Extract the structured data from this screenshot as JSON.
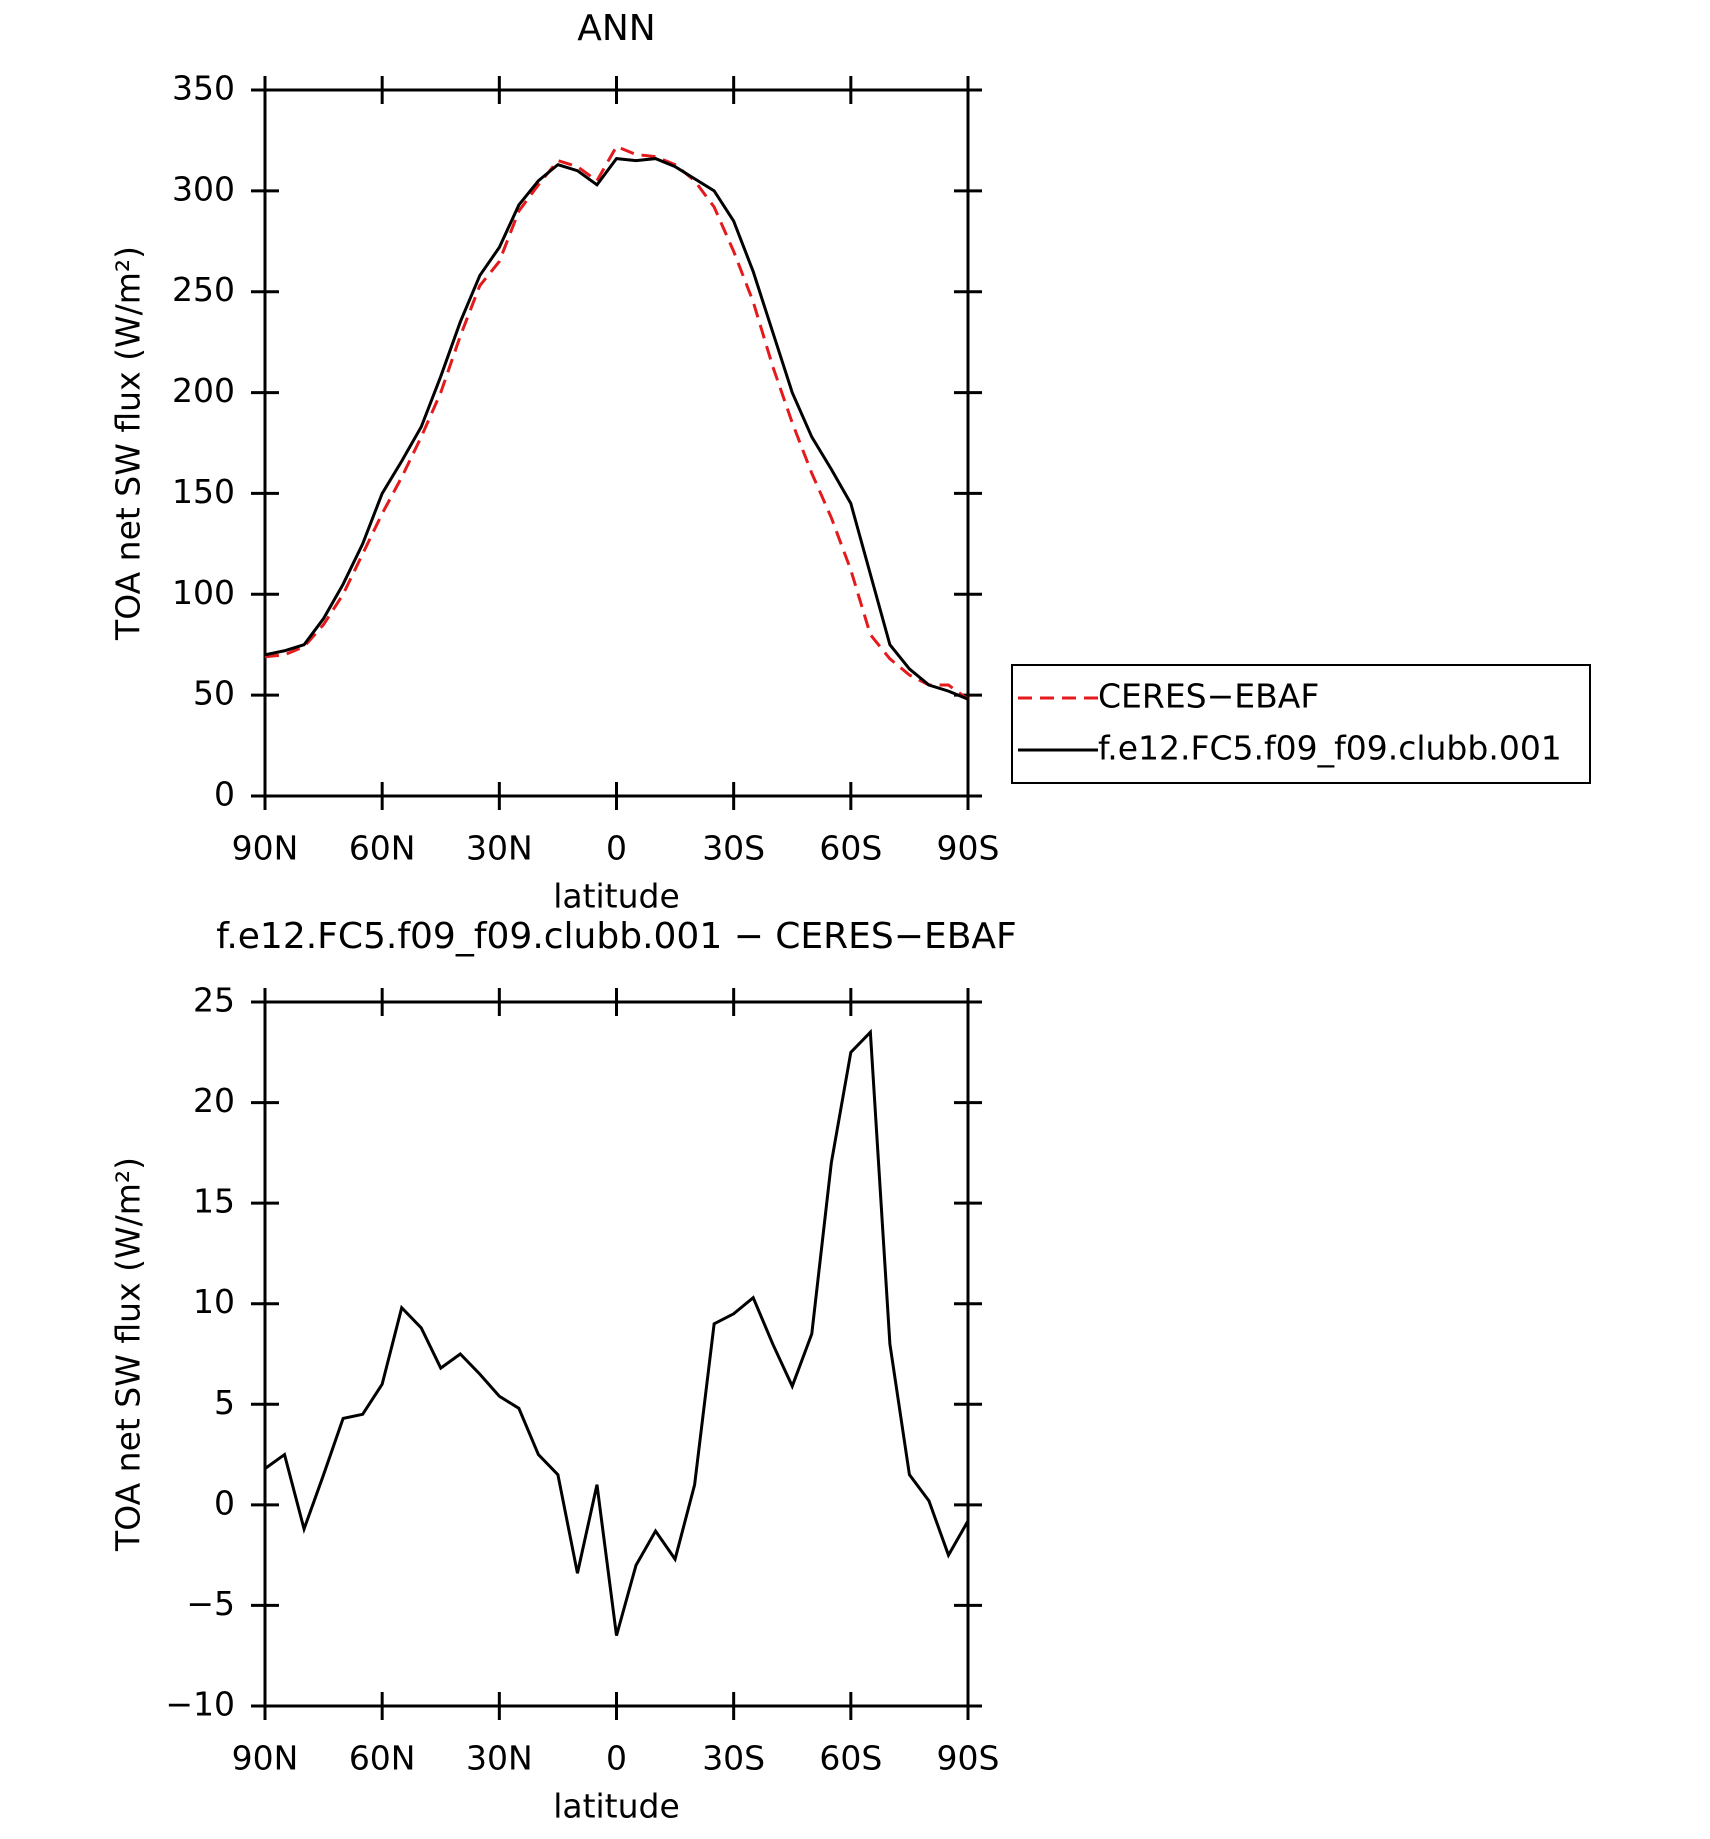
{
  "chart_data": [
    {
      "type": "line",
      "title": "ANN",
      "xlabel": "latitude",
      "ylabel": "TOA net SW flux (W/m²)",
      "x": [
        90,
        85,
        80,
        75,
        70,
        65,
        60,
        55,
        50,
        45,
        40,
        35,
        30,
        25,
        20,
        15,
        10,
        5,
        0,
        -5,
        -10,
        -15,
        -20,
        -25,
        -30,
        -35,
        -40,
        -45,
        -50,
        -55,
        -60,
        -65,
        -70,
        -75,
        -80,
        -85,
        -90
      ],
      "xlim": [
        90,
        -90
      ],
      "xticks": [
        {
          "value": 90,
          "label": "90N"
        },
        {
          "value": 60,
          "label": "60N"
        },
        {
          "value": 30,
          "label": "30N"
        },
        0,
        {
          "value": -30,
          "label": "30S"
        },
        {
          "value": -60,
          "label": "60S"
        },
        {
          "value": -90,
          "label": "90S"
        }
      ],
      "ylim": [
        0,
        350
      ],
      "yticks": [
        0,
        50,
        100,
        150,
        200,
        250,
        300,
        350
      ],
      "legend": "outside right",
      "series": [
        {
          "name": "CERES−EBAF",
          "color": "#e41a1c",
          "line_style": "dashed",
          "values": [
            69,
            70,
            74,
            85,
            100,
            120,
            140,
            158,
            178,
            200,
            228,
            253,
            265,
            290,
            303,
            315,
            312,
            305,
            322,
            318,
            317,
            313,
            305,
            292,
            270,
            245,
            213,
            185,
            160,
            138,
            112,
            80,
            68,
            60,
            55,
            55,
            48
          ]
        },
        {
          "name": "f.e12.FC5.f09_f09.clubb.001",
          "color": "#000000",
          "line_style": "solid",
          "values": [
            70,
            72,
            75,
            88,
            105,
            125,
            150,
            166,
            183,
            208,
            235,
            258,
            272,
            293,
            305,
            313,
            310,
            303,
            316,
            315,
            316,
            312,
            306,
            300,
            285,
            260,
            230,
            200,
            178,
            162,
            145,
            110,
            75,
            63,
            55,
            52,
            48
          ]
        }
      ]
    },
    {
      "type": "line",
      "title": "f.e12.FC5.f09_f09.clubb.001 − CERES−EBAF",
      "xlabel": "latitude",
      "ylabel": "TOA net SW flux (W/m²)",
      "x": [
        90,
        85,
        80,
        75,
        70,
        65,
        60,
        55,
        50,
        45,
        40,
        35,
        30,
        25,
        20,
        15,
        10,
        5,
        0,
        -5,
        -10,
        -15,
        -20,
        -25,
        -30,
        -35,
        -40,
        -45,
        -50,
        -55,
        -60,
        -65,
        -70,
        -75,
        -80,
        -85,
        -90
      ],
      "xlim": [
        90,
        -90
      ],
      "xticks": [
        {
          "value": 90,
          "label": "90N"
        },
        {
          "value": 60,
          "label": "60N"
        },
        {
          "value": 30,
          "label": "30N"
        },
        0,
        {
          "value": -30,
          "label": "30S"
        },
        {
          "value": -60,
          "label": "60S"
        },
        {
          "value": -90,
          "label": "90S"
        }
      ],
      "ylim": [
        -10,
        25
      ],
      "yticks": [
        {
          "value": -10,
          "label": "−10"
        },
        {
          "value": -5,
          "label": "−5"
        },
        0,
        5,
        10,
        15,
        20,
        25
      ],
      "series": [
        {
          "color": "#000000",
          "line_style": "solid",
          "values": [
            1.8,
            2.5,
            -1.2,
            1.5,
            4.3,
            4.5,
            6.0,
            9.8,
            8.8,
            6.8,
            7.5,
            6.5,
            5.4,
            4.8,
            2.5,
            1.5,
            -3.4,
            1.0,
            -6.5,
            -3.0,
            -1.3,
            -2.7,
            1.0,
            9.0,
            9.5,
            10.3,
            8.0,
            5.9,
            8.5,
            17,
            22.5,
            23.5,
            8,
            1.5,
            0.2,
            -2.5,
            -0.8
          ]
        }
      ]
    }
  ]
}
